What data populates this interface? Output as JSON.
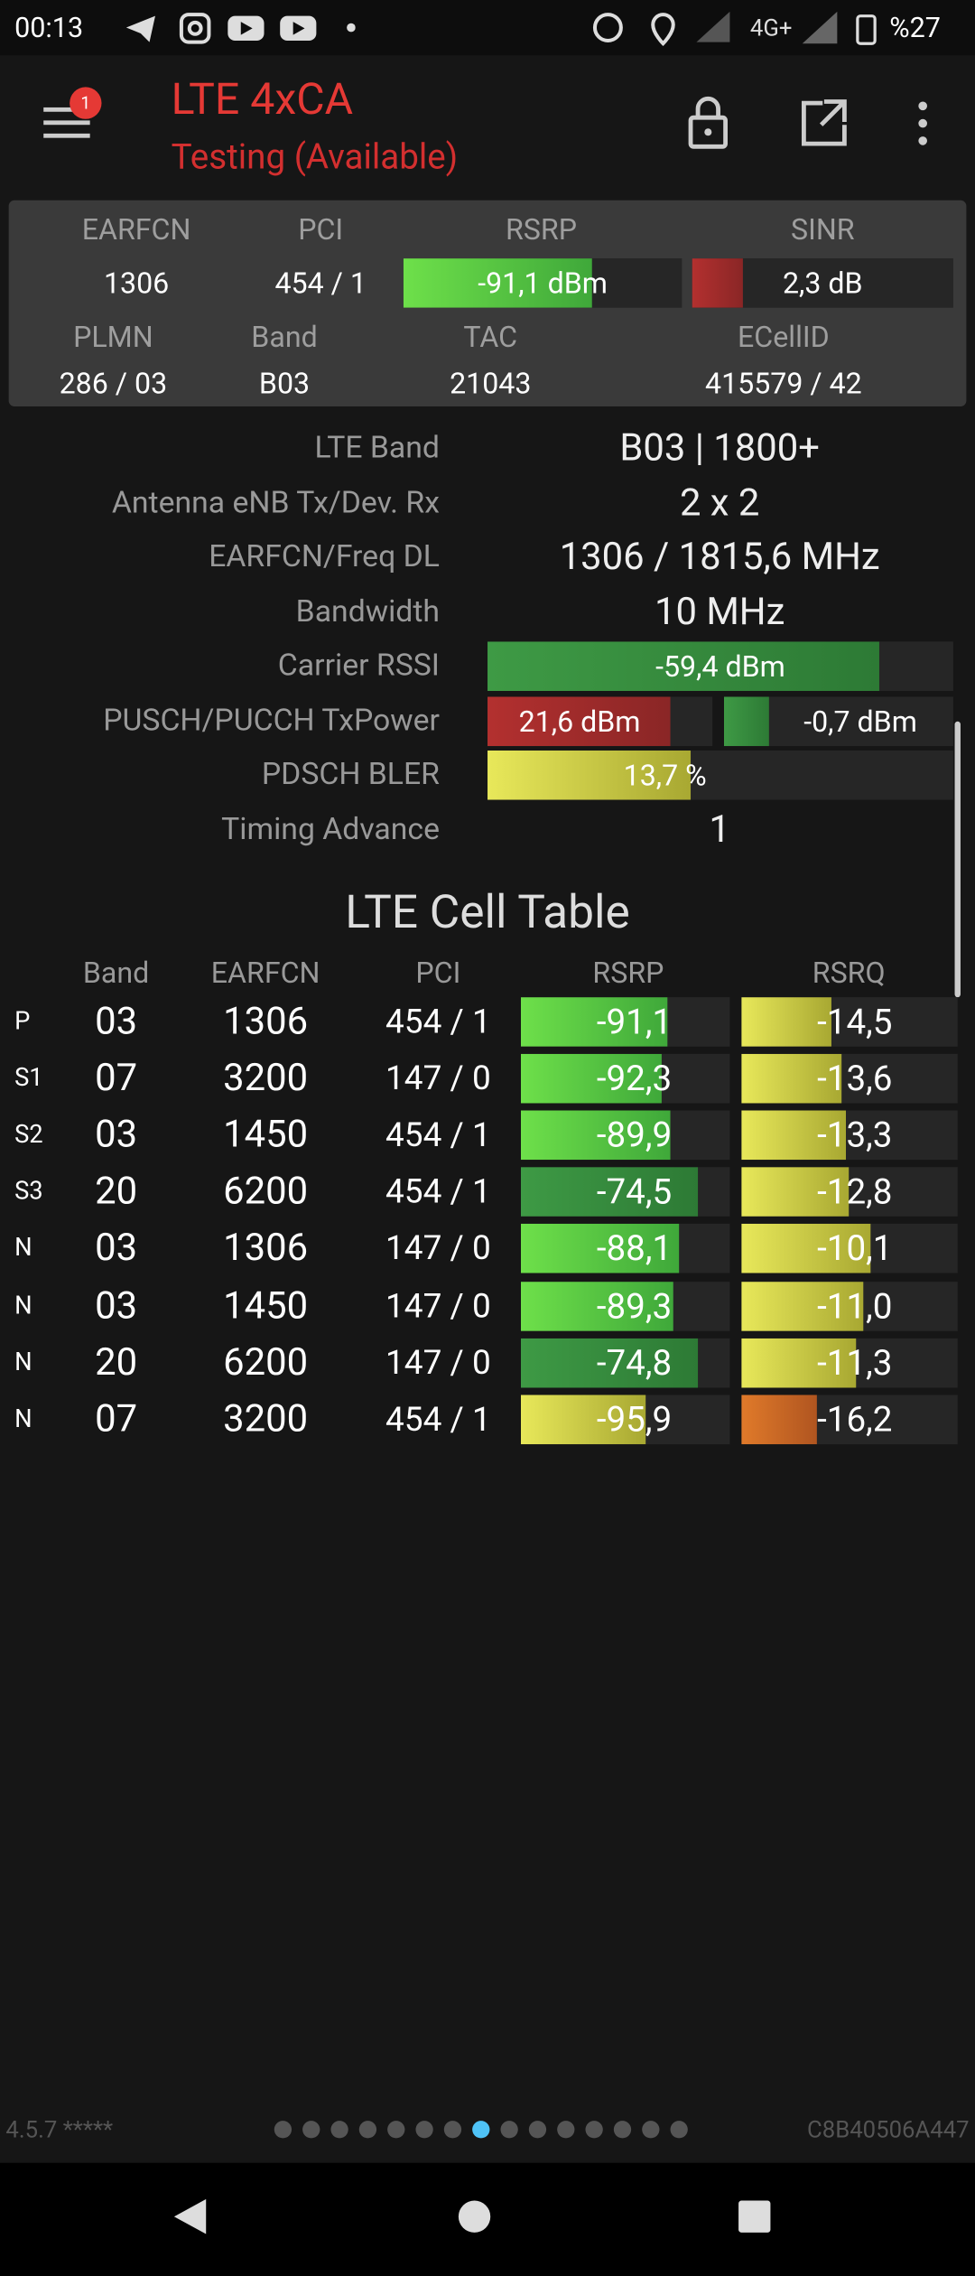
{
  "status_bar": {
    "time": "00:13",
    "network": "4G+",
    "battery": "%27"
  },
  "header": {
    "title": "LTE 4xCA",
    "subtitle": "Testing (Available)",
    "badge": "1"
  },
  "summary": {
    "labels_top": [
      "EARFCN",
      "PCI",
      "RSRP",
      "SINR"
    ],
    "values_top": [
      "1306",
      "454 / 1",
      "-91,1 dBm",
      "2,3 dB"
    ],
    "labels_bottom": [
      "PLMN",
      "Band",
      "TAC",
      "ECellID"
    ],
    "values_bottom": [
      "286 / 03",
      "B03",
      "21043",
      "415579 / 42"
    ]
  },
  "details": {
    "rows": [
      {
        "label": "LTE Band",
        "values": [
          "B03 | 1800+"
        ]
      },
      {
        "label": "Antenna eNB Tx/Dev. Rx",
        "values": [
          "2 x 2"
        ]
      },
      {
        "label": "EARFCN/Freq DL",
        "values": [
          "1306 / 1815,6 MHz"
        ]
      },
      {
        "label": "Bandwidth",
        "values": [
          "10 MHz"
        ]
      },
      {
        "label": "Carrier RSSI",
        "values": [
          "-59,4 dBm"
        ]
      },
      {
        "label": "PUSCH/PUCCH TxPower",
        "values": [
          "21,6 dBm",
          "-0,7 dBm"
        ]
      },
      {
        "label": "PDSCH BLER",
        "values": [
          "13,7 %"
        ]
      },
      {
        "label": "Timing Advance",
        "values": [
          "1"
        ]
      }
    ]
  },
  "cell_table": {
    "title": "LTE Cell Table",
    "headers": [
      "Band",
      "EARFCN",
      "PCI",
      "RSRP",
      "RSRQ"
    ],
    "rows": [
      [
        "P",
        "03",
        "1306",
        "454 / 1",
        "-91,1",
        "-14,5"
      ],
      [
        "S1",
        "07",
        "3200",
        "147 / 0",
        "-92,3",
        "-13,6"
      ],
      [
        "S2",
        "03",
        "1450",
        "454 / 1",
        "-89,9",
        "-13,3"
      ],
      [
        "S3",
        "20",
        "6200",
        "454 / 1",
        "-74,5",
        "-12,8"
      ],
      [
        "N",
        "03",
        "1306",
        "147 / 0",
        "-88,1",
        "-10,1"
      ],
      [
        "N",
        "03",
        "1450",
        "147 / 0",
        "-89,3",
        "-11,0"
      ],
      [
        "N",
        "20",
        "6200",
        "147 / 0",
        "-74,8",
        "-11,3"
      ],
      [
        "N",
        "07",
        "3200",
        "454 / 1",
        "-95,9",
        "-16,2"
      ]
    ]
  },
  "footer": {
    "version": "4.5.7 *****",
    "device_id": "C8B40506A447"
  }
}
